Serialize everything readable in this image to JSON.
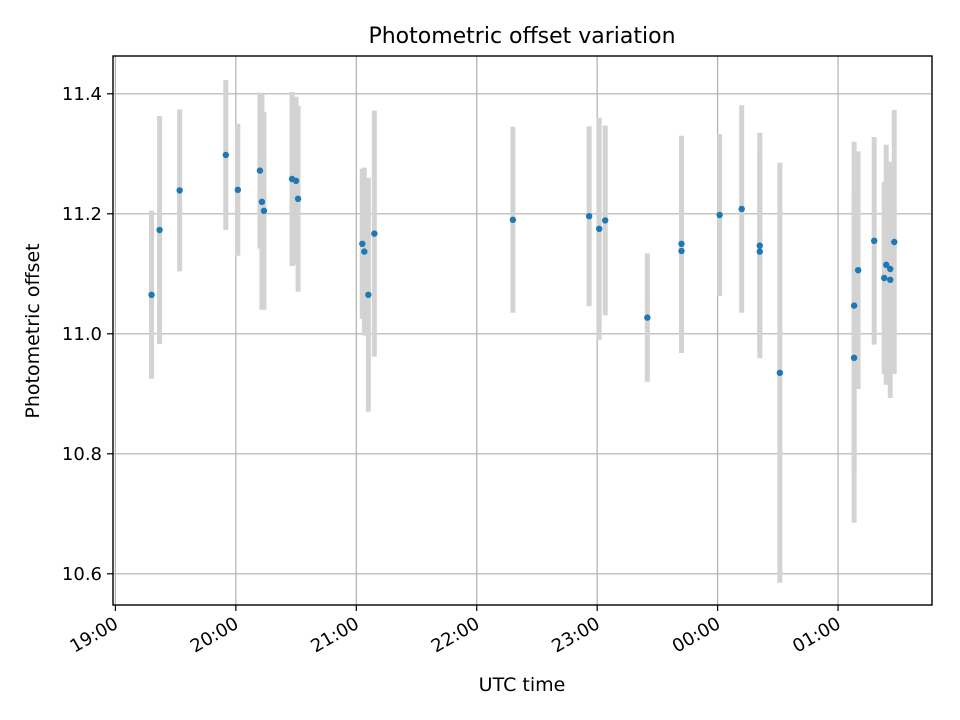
{
  "chart_data": {
    "type": "scatter",
    "title": "Photometric offset variation",
    "xlabel": "UTC time",
    "ylabel": "Photometric offset",
    "x_axis": "time",
    "x_ticks": [
      "19:00",
      "20:00",
      "21:00",
      "22:00",
      "23:00",
      "00:00",
      "01:00"
    ],
    "x_tick_hours": [
      19,
      20,
      21,
      22,
      23,
      24,
      25
    ],
    "xlim_hours": [
      18.98,
      25.78
    ],
    "ylim": [
      10.548,
      11.463
    ],
    "y_ticks": [
      "10.6",
      "10.8",
      "11.0",
      "11.2",
      "11.4"
    ],
    "y_tick_values": [
      10.6,
      10.8,
      11.0,
      11.2,
      11.4
    ],
    "grid": true,
    "marker_color": "#1f77b4",
    "errorbar_color": "#d3d3d3",
    "points": [
      {
        "t": "19:18",
        "y": 11.065,
        "err": 0.14
      },
      {
        "t": "19:22",
        "y": 11.173,
        "err": 0.19
      },
      {
        "t": "19:32",
        "y": 11.239,
        "err": 0.135
      },
      {
        "t": "19:55",
        "y": 11.298,
        "err": 0.125
      },
      {
        "t": "20:01",
        "y": 11.24,
        "err": 0.11
      },
      {
        "t": "20:12",
        "y": 11.272,
        "err": 0.13
      },
      {
        "t": "20:13",
        "y": 11.22,
        "err": 0.18
      },
      {
        "t": "20:14",
        "y": 11.205,
        "err": 0.165
      },
      {
        "t": "20:28",
        "y": 11.258,
        "err": 0.145
      },
      {
        "t": "20:30",
        "y": 11.255,
        "err": 0.14
      },
      {
        "t": "20:31",
        "y": 11.225,
        "err": 0.155
      },
      {
        "t": "21:03",
        "y": 11.15,
        "err": 0.125
      },
      {
        "t": "21:04",
        "y": 11.137,
        "err": 0.14
      },
      {
        "t": "21:06",
        "y": 11.065,
        "err": 0.195
      },
      {
        "t": "21:09",
        "y": 11.167,
        "err": 0.205
      },
      {
        "t": "22:18",
        "y": 11.19,
        "err": 0.155
      },
      {
        "t": "22:56",
        "y": 11.196,
        "err": 0.15
      },
      {
        "t": "23:01",
        "y": 11.175,
        "err": 0.185
      },
      {
        "t": "23:04",
        "y": 11.189,
        "err": 0.158
      },
      {
        "t": "23:25",
        "y": 11.027,
        "err": 0.107
      },
      {
        "t": "23:42",
        "y": 11.15,
        "err": 0.18
      },
      {
        "t": "23:42",
        "y": 11.138,
        "err": 0.17
      },
      {
        "t": "00:01",
        "y": 11.198,
        "err": 0.135
      },
      {
        "t": "00:12",
        "y": 11.208,
        "err": 0.173
      },
      {
        "t": "00:21",
        "y": 11.147,
        "err": 0.188
      },
      {
        "t": "00:21",
        "y": 11.137,
        "err": 0.16
      },
      {
        "t": "00:31",
        "y": 10.935,
        "err": 0.35
      },
      {
        "t": "01:08",
        "y": 10.96,
        "err": 0.275
      },
      {
        "t": "01:08",
        "y": 11.047,
        "err": 0.273
      },
      {
        "t": "01:10",
        "y": 11.106,
        "err": 0.198
      },
      {
        "t": "01:18",
        "y": 11.155,
        "err": 0.173
      },
      {
        "t": "01:23",
        "y": 11.093,
        "err": 0.16
      },
      {
        "t": "01:24",
        "y": 11.115,
        "err": 0.2
      },
      {
        "t": "01:26",
        "y": 11.09,
        "err": 0.197
      },
      {
        "t": "01:26",
        "y": 11.108,
        "err": 0.175
      },
      {
        "t": "01:28",
        "y": 11.153,
        "err": 0.22
      }
    ]
  }
}
